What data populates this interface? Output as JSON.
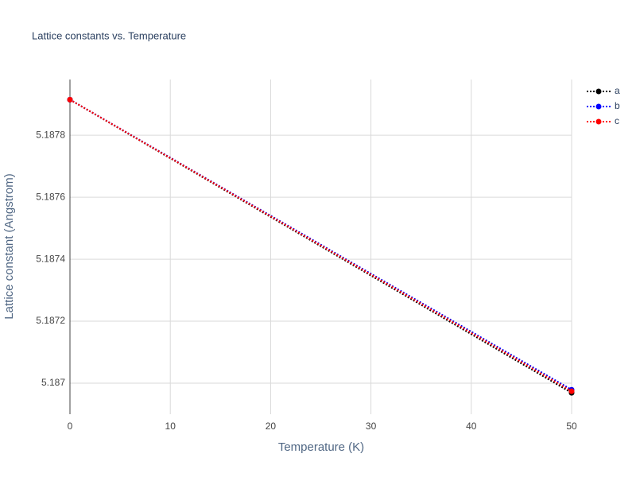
{
  "chart_data": {
    "type": "line",
    "title": "Lattice constants vs. Temperature",
    "x_label": "Temperature (K)",
    "y_label": "Lattice constant (Angstrom)",
    "x": [
      0,
      50
    ],
    "series": [
      {
        "name": "a",
        "color": "#000000",
        "values": [
          5.187915,
          5.186969
        ]
      },
      {
        "name": "b",
        "color": "#0000ff",
        "values": [
          5.187915,
          5.186979
        ]
      },
      {
        "name": "c",
        "color": "#ff0000",
        "values": [
          5.187915,
          5.186974
        ]
      }
    ],
    "xlim": [
      0,
      50
    ],
    "xticks": [
      0,
      10,
      20,
      30,
      40,
      50
    ],
    "ylim": [
      5.1869,
      5.18798
    ],
    "yticks": [
      5.187,
      5.1872,
      5.1874,
      5.1876,
      5.1878
    ],
    "grid": true,
    "legend": "top-right"
  }
}
